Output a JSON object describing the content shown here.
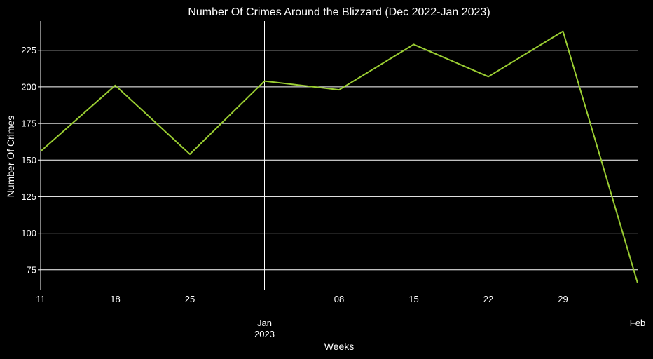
{
  "chart_data": {
    "type": "line",
    "title": "Number Of Crimes Around the Blizzard (Dec 2022-Jan 2023)",
    "xlabel": "Weeks",
    "ylabel": "Number Of Crimes",
    "x": [
      "2022-12-11",
      "2022-12-18",
      "2022-12-25",
      "2023-01-01",
      "2023-01-08",
      "2023-01-15",
      "2023-01-22",
      "2023-01-29",
      "2023-02-05"
    ],
    "series": [
      {
        "values": [
          156,
          201,
          154,
          204,
          198,
          229,
          207,
          238,
          66
        ]
      }
    ],
    "xlim": [
      "2022-12-11",
      "2023-02-05"
    ],
    "ylim": [
      61,
      245
    ],
    "y_ticks": [
      75,
      100,
      125,
      150,
      175,
      200,
      225
    ],
    "x_ticks": [
      {
        "date": "2022-12-11",
        "label": "11"
      },
      {
        "date": "2022-12-18",
        "label": "18"
      },
      {
        "date": "2022-12-25",
        "label": "25"
      },
      {
        "date": "2023-01-01",
        "label": "Jan\n2023"
      },
      {
        "date": "2023-01-08",
        "label": "08"
      },
      {
        "date": "2023-01-15",
        "label": "15"
      },
      {
        "date": "2023-01-22",
        "label": "22"
      },
      {
        "date": "2023-01-29",
        "label": "29"
      },
      {
        "date": "2023-02-05",
        "label": "Feb"
      }
    ],
    "grid": "horizontal",
    "background": "#000000",
    "colors": {
      "line": "#9acd32",
      "grid": "#ffffff",
      "text": "#ffffff"
    }
  }
}
